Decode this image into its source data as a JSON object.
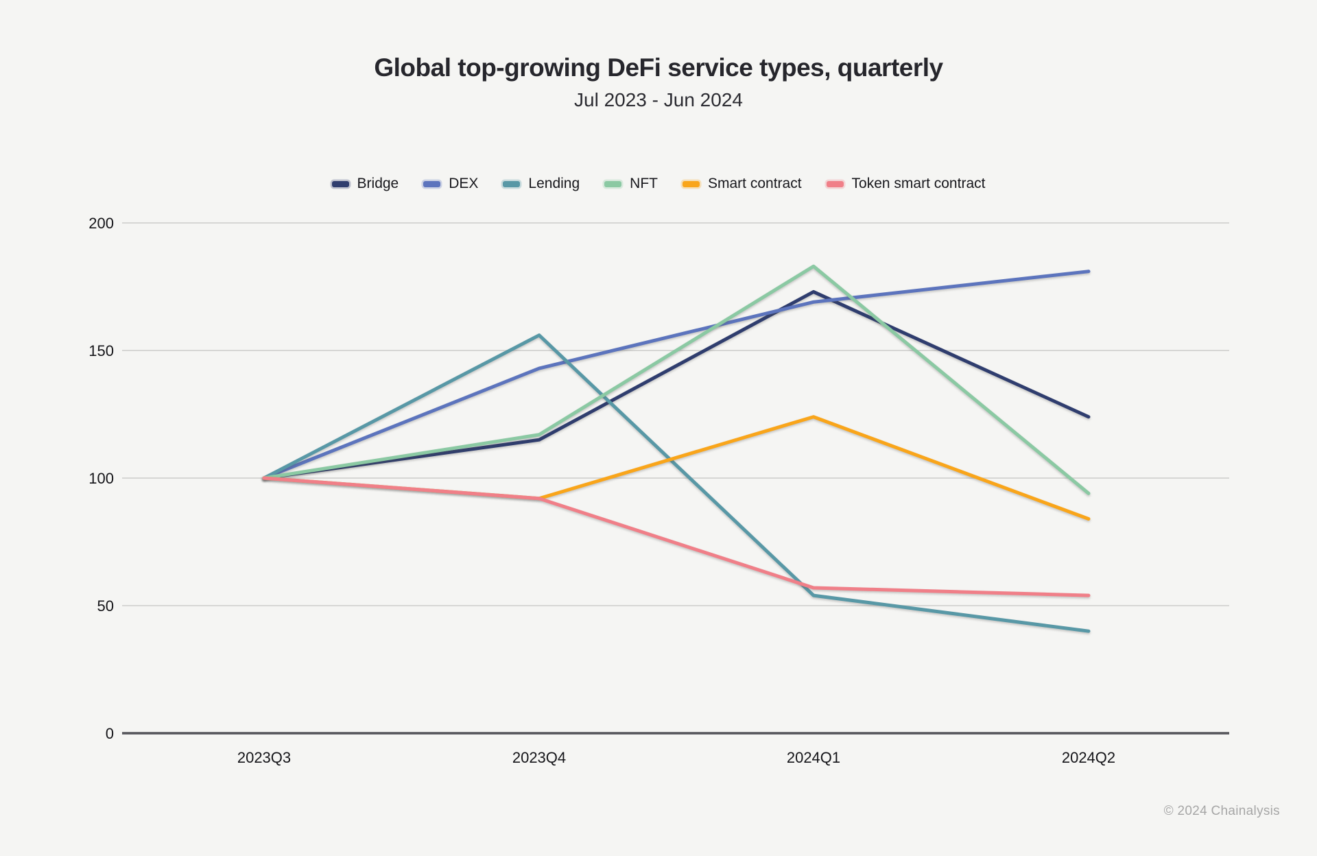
{
  "header": {
    "title": "Global top-growing DeFi service types, quarterly",
    "subtitle": "Jul 2023 - Jun 2024"
  },
  "footer": {
    "copyright": "© 2024 Chainalysis"
  },
  "colors": {
    "background": "#f5f5f3",
    "gridline": "#d6d6d4",
    "axis_line": "#55555a",
    "text": "#141418",
    "footer_text": "#a6a6a6"
  },
  "chart_data": {
    "type": "line",
    "title": "Global top-growing DeFi service types, quarterly",
    "subtitle": "Jul 2023 - Jun 2024",
    "categories": [
      "2023Q3",
      "2023Q4",
      "2024Q1",
      "2024Q2"
    ],
    "series": [
      {
        "name": "Bridge",
        "color": "#2f3d6e",
        "values": [
          100,
          115,
          173,
          124
        ]
      },
      {
        "name": "DEX",
        "color": "#5c74bd",
        "values": [
          100,
          143,
          169,
          181
        ]
      },
      {
        "name": "Lending",
        "color": "#5898a6",
        "values": [
          100,
          156,
          54,
          40
        ]
      },
      {
        "name": "NFT",
        "color": "#8bc9a3",
        "values": [
          100,
          117,
          183,
          94
        ]
      },
      {
        "name": "Smart contract",
        "color": "#f9a51a",
        "values": [
          100,
          92,
          124,
          84
        ]
      },
      {
        "name": "Token smart contract",
        "color": "#f07f88",
        "values": [
          100,
          92,
          57,
          54
        ]
      }
    ],
    "ylim": [
      0,
      200
    ],
    "yticks": [
      0,
      50,
      100,
      150,
      200
    ],
    "grid": true,
    "legend_position": "top",
    "xlabel": "",
    "ylabel": ""
  }
}
